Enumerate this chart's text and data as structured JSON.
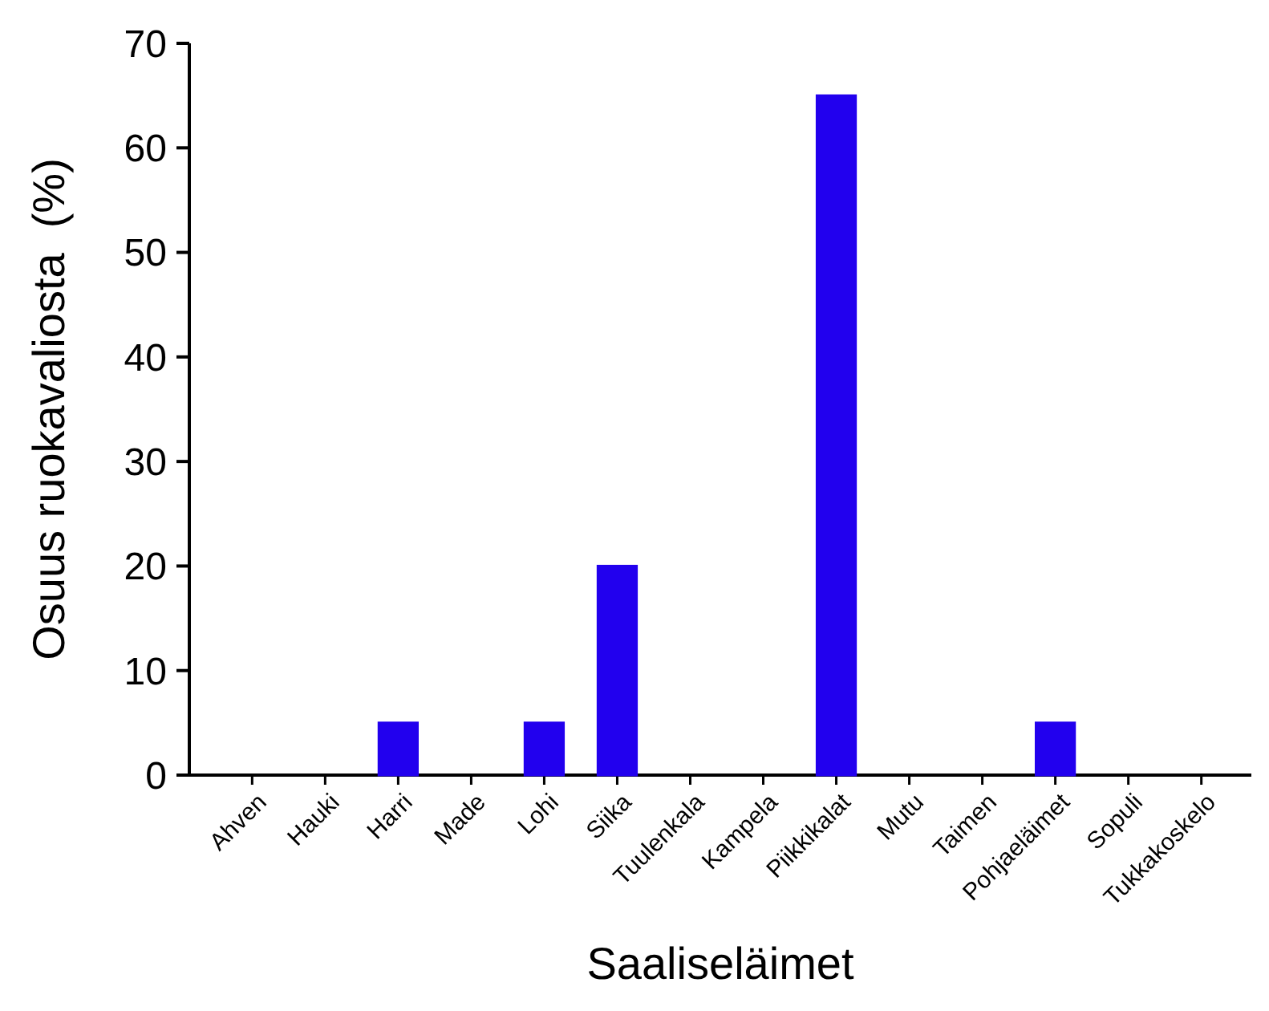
{
  "chart_data": {
    "type": "bar",
    "xlabel": "Saaliseläimet",
    "ylabel": "Osuus ruokavaliosta  (%)",
    "categories": [
      "Ahven",
      "Hauki",
      "Harri",
      "Made",
      "Lohi",
      "Siika",
      "Tuulenkala",
      "Kampela",
      "Piikkikalat",
      "Mutu",
      "Taimen",
      "Pohjaeläimet",
      "Sopuli",
      "Tukkakoskelo"
    ],
    "values": [
      0,
      0,
      5,
      0,
      5,
      20,
      0,
      0,
      65,
      0,
      0,
      5,
      0,
      0
    ],
    "color": "#2200ee",
    "ylim": [
      0,
      70
    ],
    "yticks": [
      0,
      10,
      20,
      30,
      40,
      50,
      60,
      70
    ],
    "grid": false
  }
}
